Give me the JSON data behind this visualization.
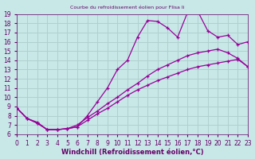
{
  "title": "Courbe du refroidissement éolien pour Flisa Ii",
  "xlabel": "Windchill (Refroidissement éolien,°C)",
  "xlim": [
    0,
    23
  ],
  "ylim": [
    6,
    19
  ],
  "xticks": [
    0,
    1,
    2,
    3,
    4,
    5,
    6,
    7,
    8,
    9,
    10,
    11,
    12,
    13,
    14,
    15,
    16,
    17,
    18,
    19,
    20,
    21,
    22,
    23
  ],
  "yticks": [
    6,
    7,
    8,
    9,
    10,
    11,
    12,
    13,
    14,
    15,
    16,
    17,
    18,
    19
  ],
  "bg_color": "#c8e8e8",
  "grid_color": "#b0d0d0",
  "line_color": "#990099",
  "line1_x": [
    0,
    1,
    2,
    3,
    4,
    5,
    6,
    7,
    8,
    9,
    10,
    11,
    12,
    13,
    14,
    15,
    16,
    17,
    18,
    19,
    20,
    21,
    22,
    23
  ],
  "line1_y": [
    8.8,
    7.7,
    7.3,
    6.5,
    6.5,
    6.6,
    6.8,
    8.0,
    9.5,
    11.0,
    13.0,
    14.0,
    16.5,
    18.3,
    18.2,
    17.5,
    16.5,
    19.2,
    19.3,
    17.2,
    16.5,
    16.7,
    15.7,
    16.0
  ],
  "line2_x": [
    0,
    1,
    2,
    3,
    4,
    5,
    6,
    7,
    8,
    9,
    10,
    11,
    12,
    13,
    14,
    15,
    16,
    17,
    18,
    19,
    20,
    21,
    22,
    23
  ],
  "line2_y": [
    8.8,
    7.7,
    7.2,
    6.5,
    6.5,
    6.6,
    7.0,
    7.8,
    8.5,
    9.3,
    10.0,
    10.8,
    11.5,
    12.3,
    13.0,
    13.5,
    14.0,
    14.5,
    14.8,
    15.0,
    15.2,
    14.8,
    14.2,
    13.3
  ],
  "line3_x": [
    0,
    1,
    2,
    3,
    4,
    5,
    6,
    7,
    8,
    9,
    10,
    11,
    12,
    13,
    14,
    15,
    16,
    17,
    18,
    19,
    20,
    21,
    22,
    23
  ],
  "line3_y": [
    8.8,
    7.7,
    7.2,
    6.5,
    6.5,
    6.6,
    6.8,
    7.5,
    8.2,
    8.8,
    9.5,
    10.2,
    10.8,
    11.3,
    11.8,
    12.2,
    12.6,
    13.0,
    13.3,
    13.5,
    13.7,
    13.9,
    14.1,
    13.3
  ],
  "font_color": "#660066",
  "tick_fontsize": 5.5,
  "label_fontsize": 6.0
}
